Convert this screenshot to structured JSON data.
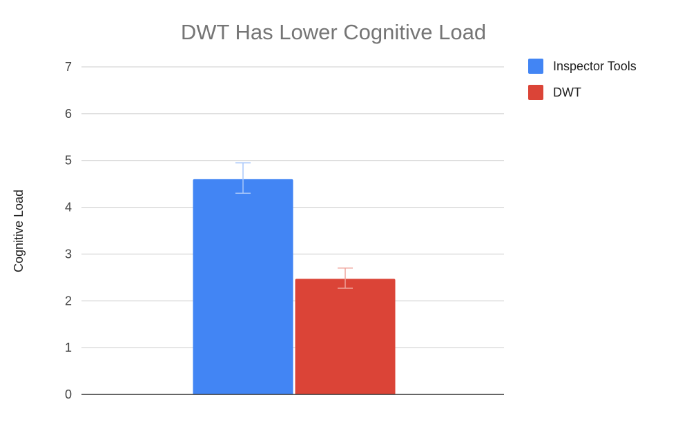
{
  "chart_data": {
    "type": "bar",
    "title": "DWT Has Lower Cognitive Load",
    "xlabel": "",
    "ylabel": "Cognitive Load",
    "ylim": [
      0,
      7
    ],
    "yticks": [
      0,
      1,
      2,
      3,
      4,
      5,
      6,
      7
    ],
    "grid": true,
    "legend_position": "right",
    "series": [
      {
        "name": "Inspector Tools",
        "color": "#4285f4",
        "error_color": "#a8c7fa",
        "value": 4.6,
        "error_low": 4.3,
        "error_high": 4.95
      },
      {
        "name": "DWT",
        "color": "#db4437",
        "error_color": "#efa39b",
        "value": 2.47,
        "error_low": 2.27,
        "error_high": 2.7
      }
    ]
  }
}
